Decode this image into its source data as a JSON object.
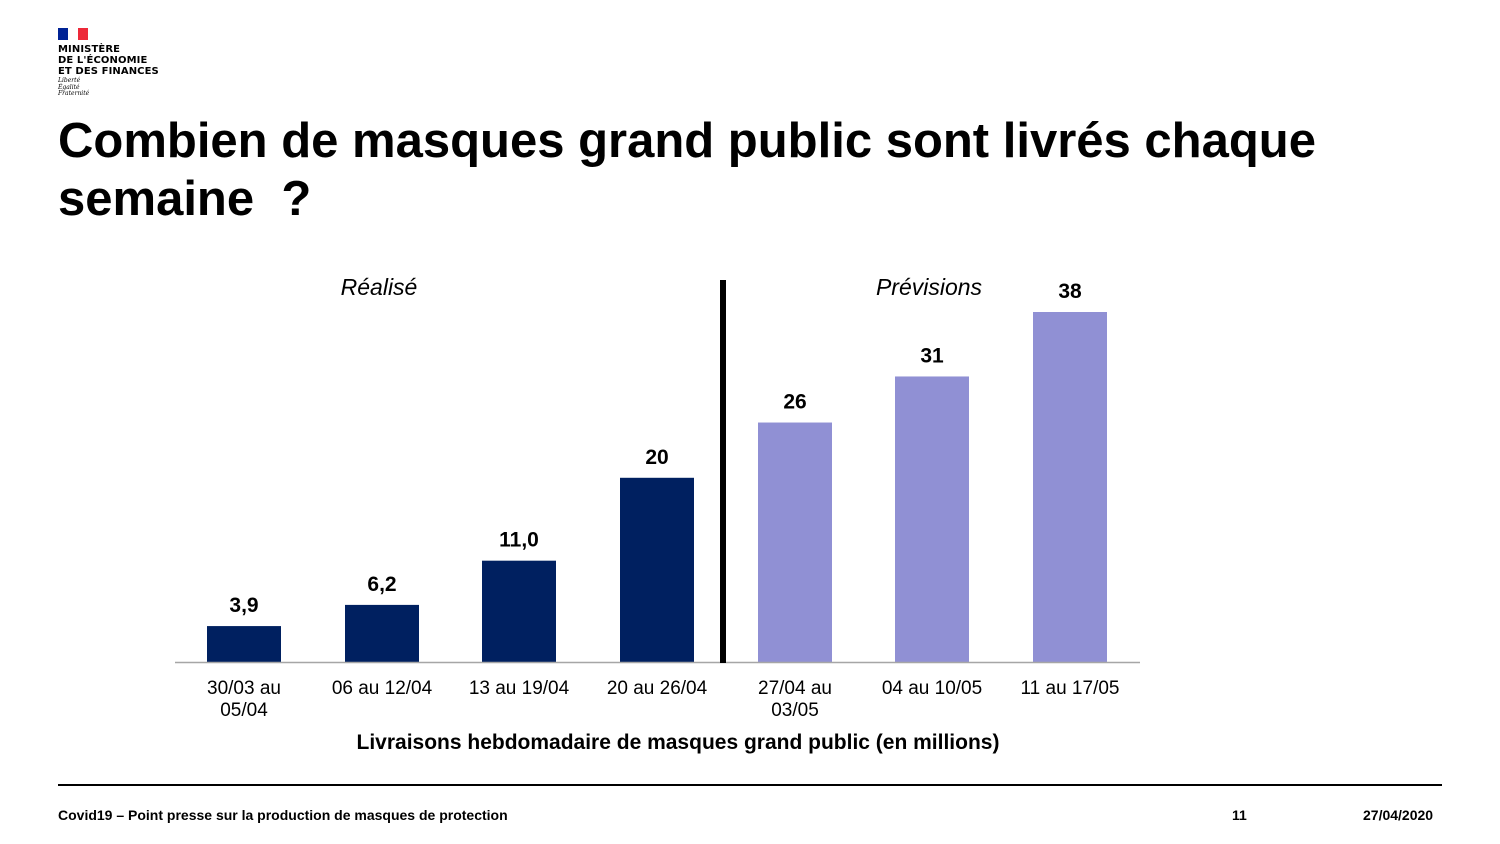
{
  "logo": {
    "flag_colors": [
      "#002395",
      "#ffffff",
      "#ED2939"
    ],
    "lines": [
      "MINISTÈRE",
      "DE L'ÉCONOMIE",
      "ET DES FINANCES"
    ],
    "motto": [
      "Liberté",
      "Égalité",
      "Fraternité"
    ]
  },
  "title": "Combien de masques grand public sont livrés chaque semaine  ?",
  "chart_data": {
    "type": "bar",
    "categories": [
      [
        "30/03 au",
        "05/04"
      ],
      [
        "06 au 12/04"
      ],
      [
        "13 au 19/04"
      ],
      [
        "20 au 26/04"
      ],
      [
        "27/04 au",
        "03/05"
      ],
      [
        "04 au 10/05"
      ],
      [
        "11 au 17/05"
      ]
    ],
    "values": [
      3.9,
      6.2,
      11.0,
      20,
      26,
      31,
      38
    ],
    "value_labels": [
      "3,9",
      "6,2",
      "11,0",
      "20",
      "26",
      "31",
      "38"
    ],
    "colors": [
      "#002060",
      "#002060",
      "#002060",
      "#002060",
      "#9090D4",
      "#9090D4",
      "#9090D4"
    ],
    "sections": [
      "Réalisé",
      "Prévisions"
    ],
    "xlabel": "Livraisons hebdomadaire de masques grand public (en millions)",
    "ylabel": "",
    "ylim": [
      0,
      38
    ],
    "grid": false
  },
  "footer": {
    "left": "Covid19 – Point presse sur la production de masques de protection",
    "page": "11",
    "date": "27/04/2020"
  }
}
